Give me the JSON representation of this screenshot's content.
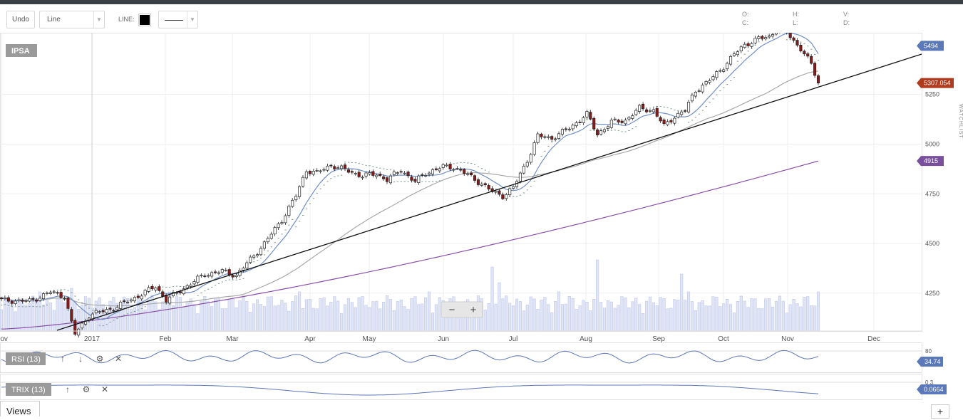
{
  "toolbar": {
    "undo_label": "Undo",
    "type_select_value": "Line",
    "line_label": "LINE:",
    "line_color": "#000000",
    "line_style": "solid"
  },
  "ohlc": {
    "o": "O:",
    "h": "H:",
    "v": "V:",
    "c": "C:",
    "l": "L:",
    "d": "D:"
  },
  "side_tab": "WATCHLIST",
  "views_label": "Views",
  "add_label": "+",
  "zoom": {
    "minus": "−",
    "plus": "+"
  },
  "colors": {
    "up": "#ffffff",
    "down": "#8b1a1a",
    "ma_fast": "#6f8fc7",
    "ma_slow": "#a9a9a9",
    "ma_long": "#8a4fa8",
    "trend": "#111111",
    "volume": "#dfe4f7",
    "badge_last": "#b03a1c",
    "badge_ma": "#5b79b8",
    "badge_long": "#7a4f9e"
  },
  "chart_data": {
    "type": "candlestick",
    "instrument": "IPSA",
    "x_ticks": [
      "Nov",
      "2017",
      "Feb",
      "Mar",
      "Apr",
      "May",
      "Jun",
      "Jul",
      "Aug",
      "Sep",
      "Oct",
      "Nov",
      "Dec"
    ],
    "y_ticks": [
      4250,
      4500,
      4750,
      5000,
      5250
    ],
    "ylim": [
      4060,
      5560
    ],
    "badges": [
      {
        "label": "5494",
        "value": 5494,
        "kind": "ma"
      },
      {
        "label": "5307.054",
        "value": 5307.054,
        "kind": "last"
      },
      {
        "label": "4915",
        "value": 4915,
        "kind": "long"
      }
    ],
    "price_anchors": [
      [
        0,
        4215
      ],
      [
        8,
        4210
      ],
      [
        14,
        4255
      ],
      [
        18,
        4235
      ],
      [
        20,
        4100
      ],
      [
        21,
        4045
      ],
      [
        25,
        4140
      ],
      [
        32,
        4175
      ],
      [
        40,
        4245
      ],
      [
        44,
        4285
      ],
      [
        47,
        4215
      ],
      [
        52,
        4275
      ],
      [
        58,
        4345
      ],
      [
        63,
        4360
      ],
      [
        67,
        4340
      ],
      [
        72,
        4440
      ],
      [
        75,
        4500
      ],
      [
        80,
        4620
      ],
      [
        84,
        4740
      ],
      [
        87,
        4870
      ],
      [
        90,
        4855
      ],
      [
        94,
        4895
      ],
      [
        98,
        4870
      ],
      [
        103,
        4840
      ],
      [
        107,
        4850
      ],
      [
        110,
        4820
      ],
      [
        114,
        4870
      ],
      [
        118,
        4810
      ],
      [
        121,
        4855
      ],
      [
        126,
        4885
      ],
      [
        129,
        4885
      ],
      [
        133,
        4845
      ],
      [
        137,
        4800
      ],
      [
        140,
        4760
      ],
      [
        143,
        4740
      ],
      [
        146,
        4780
      ],
      [
        150,
        4920
      ],
      [
        153,
        5040
      ],
      [
        157,
        5030
      ],
      [
        162,
        5080
      ],
      [
        167,
        5150
      ],
      [
        170,
        5050
      ],
      [
        174,
        5110
      ],
      [
        178,
        5120
      ],
      [
        182,
        5180
      ],
      [
        186,
        5170
      ],
      [
        189,
        5090
      ],
      [
        192,
        5140
      ],
      [
        195,
        5170
      ],
      [
        198,
        5270
      ],
      [
        202,
        5320
      ],
      [
        206,
        5390
      ],
      [
        209,
        5450
      ],
      [
        212,
        5500
      ],
      [
        216,
        5530
      ],
      [
        219,
        5540
      ],
      [
        222,
        5600
      ],
      [
        225,
        5540
      ],
      [
        228,
        5480
      ],
      [
        231,
        5400
      ],
      [
        233,
        5307
      ]
    ],
    "volume_note": "daily volume bars shown at bottom of price panel",
    "rsi": {
      "label": "RSI (13)",
      "level_tick": "80",
      "last_badge": "34.74",
      "last_value": 34.74
    },
    "trix": {
      "label": "TRIX (13)",
      "level_tick": "0.3",
      "last_badge": "0.0664",
      "last_value": 0.0664
    }
  }
}
